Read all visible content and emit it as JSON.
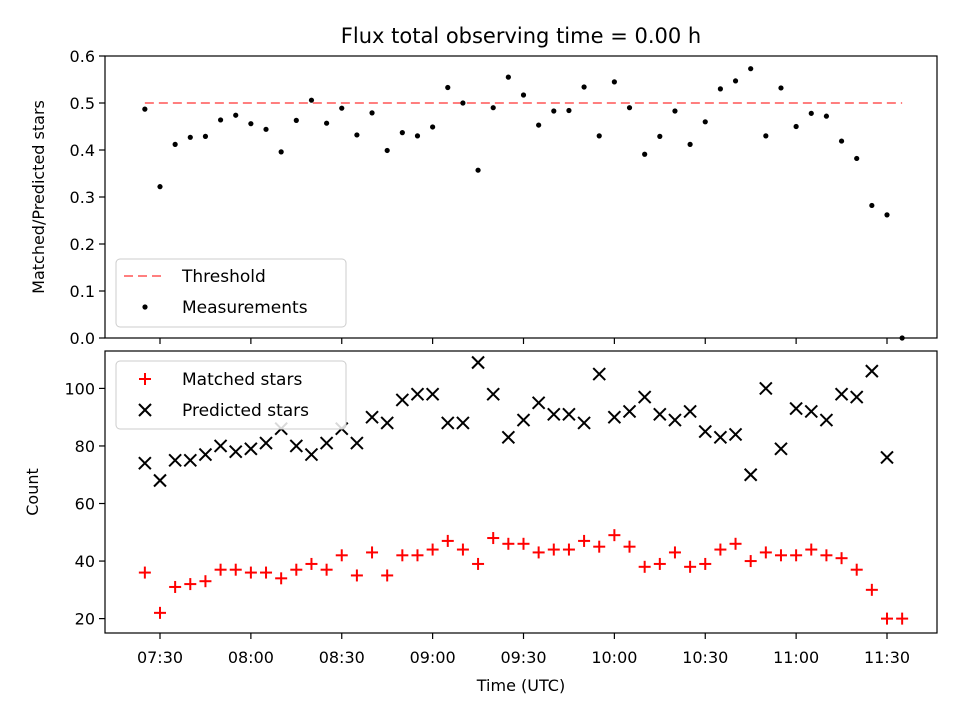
{
  "colors": {
    "threshold": "#ff7f7f",
    "measurements": "#000000",
    "matched": "#ff0000",
    "predicted": "#000000"
  },
  "chart_data": [
    {
      "type": "scatter",
      "title": "Flux total observing time = 0.00 h",
      "ylabel": "Matched/Predicted stars",
      "xlabel": "",
      "ylim": [
        0,
        0.6
      ],
      "yticks": [
        "0.0",
        "0.1",
        "0.2",
        "0.3",
        "0.4",
        "0.5",
        "0.6"
      ],
      "legend": {
        "placement": "lower-left",
        "entries": [
          "Threshold",
          "Measurements"
        ]
      },
      "threshold": {
        "name": "Threshold",
        "value": 0.5,
        "x_start": "07:25",
        "x_end": "11:35"
      },
      "x": [
        "07:25",
        "07:30",
        "07:35",
        "07:40",
        "07:45",
        "07:50",
        "07:55",
        "08:00",
        "08:05",
        "08:10",
        "08:15",
        "08:20",
        "08:25",
        "08:30",
        "08:35",
        "08:40",
        "08:45",
        "08:50",
        "08:55",
        "09:00",
        "09:05",
        "09:10",
        "09:15",
        "09:20",
        "09:25",
        "09:30",
        "09:35",
        "09:40",
        "09:45",
        "09:50",
        "09:55",
        "10:00",
        "10:05",
        "10:10",
        "10:15",
        "10:20",
        "10:25",
        "10:30",
        "10:35",
        "10:40",
        "10:45",
        "10:50",
        "10:55",
        "11:00",
        "11:05",
        "11:10",
        "11:15",
        "11:20",
        "11:25",
        "11:30",
        "11:35"
      ],
      "series": [
        {
          "name": "Measurements",
          "values": [
            0.487,
            0.322,
            0.412,
            0.427,
            0.429,
            0.464,
            0.474,
            0.456,
            0.444,
            0.396,
            0.463,
            0.506,
            0.457,
            0.489,
            0.432,
            0.479,
            0.399,
            0.437,
            0.43,
            0.449,
            0.533,
            0.5,
            0.357,
            0.49,
            0.555,
            0.517,
            0.453,
            0.483,
            0.484,
            0.534,
            0.43,
            0.545,
            0.49,
            0.391,
            0.429,
            0.483,
            0.412,
            0.46,
            0.53,
            0.547,
            0.573,
            0.43,
            0.532,
            0.45,
            0.478,
            0.472,
            0.419,
            0.382,
            0.282,
            0.262,
            0.0
          ]
        }
      ]
    },
    {
      "type": "scatter",
      "title": "",
      "ylabel": "Count",
      "xlabel": "Time (UTC)",
      "ylim": [
        15,
        113
      ],
      "yticks": [
        "20",
        "40",
        "60",
        "80",
        "100"
      ],
      "xticks": [
        "07:30",
        "08:00",
        "08:30",
        "09:00",
        "09:30",
        "10:00",
        "10:30",
        "11:00",
        "11:30"
      ],
      "legend": {
        "placement": "top-left",
        "entries": [
          "Matched stars",
          "Predicted stars"
        ]
      },
      "x": [
        "07:25",
        "07:30",
        "07:35",
        "07:40",
        "07:45",
        "07:50",
        "07:55",
        "08:00",
        "08:05",
        "08:10",
        "08:15",
        "08:20",
        "08:25",
        "08:30",
        "08:35",
        "08:40",
        "08:45",
        "08:50",
        "08:55",
        "09:00",
        "09:05",
        "09:10",
        "09:15",
        "09:20",
        "09:25",
        "09:30",
        "09:35",
        "09:40",
        "09:45",
        "09:50",
        "09:55",
        "10:00",
        "10:05",
        "10:10",
        "10:15",
        "10:20",
        "10:25",
        "10:30",
        "10:35",
        "10:40",
        "10:45",
        "10:50",
        "10:55",
        "11:00",
        "11:05",
        "11:10",
        "11:15",
        "11:20",
        "11:25",
        "11:30",
        "11:35"
      ],
      "series": [
        {
          "name": "Matched stars",
          "values": [
            36,
            22,
            31,
            32,
            33,
            37,
            37,
            36,
            36,
            34,
            37,
            39,
            37,
            42,
            35,
            43,
            35,
            42,
            42,
            44,
            47,
            44,
            39,
            48,
            46,
            46,
            43,
            44,
            44,
            47,
            45,
            49,
            45,
            38,
            39,
            43,
            38,
            39,
            44,
            46,
            40,
            43,
            42,
            42,
            44,
            42,
            41,
            37,
            30,
            20,
            20
          ]
        },
        {
          "name": "Predicted stars",
          "values": [
            74,
            68,
            75,
            75,
            77,
            80,
            78,
            79,
            81,
            86,
            80,
            77,
            81,
            86,
            81,
            90,
            88,
            96,
            98,
            98,
            88,
            88,
            109,
            98,
            83,
            89,
            95,
            91,
            91,
            88,
            105,
            90,
            92,
            97,
            91,
            89,
            92,
            85,
            83,
            84,
            70,
            100,
            79,
            93,
            92,
            89,
            98,
            97,
            106,
            76,
            null
          ]
        }
      ]
    }
  ]
}
